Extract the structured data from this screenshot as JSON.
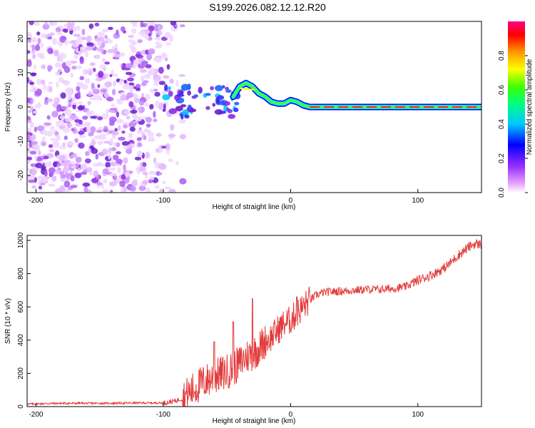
{
  "title": "S199.2026.082.12.12.R20",
  "colors": {
    "series": "#e33b3b",
    "axis": "#000000",
    "background": "#ffffff"
  },
  "chart_data": [
    {
      "type": "heatmap",
      "title": "",
      "xlabel": "Height of straight line (km)",
      "ylabel": "Frequency (Hz)",
      "xlim": [
        -207,
        150
      ],
      "ylim": [
        -25,
        25
      ],
      "xticks": [
        -200,
        -100,
        0,
        100
      ],
      "yticks": [
        -20,
        -10,
        0,
        10,
        20
      ],
      "colorbar": {
        "label": "Normalized spectral amplitude",
        "range": [
          0,
          1
        ],
        "ticks": [
          "0.0",
          "0.2",
          "0.4",
          "0.6",
          "0.8"
        ],
        "tick_values": [
          0.0,
          0.2,
          0.4,
          0.6,
          0.8
        ],
        "colormap": [
          "#ffffff",
          "#e9a8ff",
          "#8a2be2",
          "#0000ff",
          "#00ffff",
          "#00ff00",
          "#ffff00",
          "#ff8800",
          "#ff0000",
          "#ff0080"
        ]
      },
      "ridge": {
        "description_points_km_hz": [
          [
            -100,
            4
          ],
          [
            -90,
            3
          ],
          [
            -80,
            4
          ],
          [
            -70,
            3
          ],
          [
            -60,
            2
          ],
          [
            -50,
            1
          ],
          [
            -45,
            3
          ],
          [
            -40,
            6
          ],
          [
            -35,
            7
          ],
          [
            -30,
            6
          ],
          [
            -25,
            4
          ],
          [
            -20,
            3
          ],
          [
            -15,
            1.5
          ],
          [
            -10,
            1
          ],
          [
            -5,
            1
          ],
          [
            0,
            2
          ],
          [
            5,
            1.5
          ],
          [
            10,
            0.5
          ],
          [
            15,
            0
          ],
          [
            150,
            0
          ]
        ]
      }
    },
    {
      "type": "line",
      "title": "",
      "xlabel": "Height of straight line (km)",
      "ylabel": "SNR (10 * v/v)",
      "xlim": [
        -207,
        150
      ],
      "ylim": [
        0,
        1030
      ],
      "xticks": [
        -200,
        -100,
        0,
        100
      ],
      "yticks": [
        0,
        200,
        400,
        600,
        800,
        1000
      ],
      "series": [
        {
          "name": "SNR",
          "x": [
            -207,
            -195,
            -180,
            -160,
            -140,
            -120,
            -100,
            -95,
            -90,
            -85,
            -80,
            -75,
            -70,
            -65,
            -60,
            -55,
            -50,
            -45,
            -40,
            -35,
            -30,
            -25,
            -20,
            -15,
            -10,
            -5,
            0,
            3,
            6,
            10,
            15,
            20,
            25,
            30,
            40,
            50,
            60,
            70,
            80,
            90,
            95,
            100,
            110,
            120,
            125,
            130,
            135,
            140,
            145,
            150
          ],
          "values": [
            15,
            18,
            20,
            20,
            20,
            22,
            22,
            28,
            35,
            50,
            80,
            110,
            140,
            160,
            180,
            195,
            210,
            230,
            260,
            300,
            320,
            350,
            390,
            420,
            460,
            500,
            520,
            545,
            570,
            600,
            640,
            670,
            685,
            690,
            695,
            700,
            705,
            705,
            710,
            720,
            740,
            760,
            790,
            830,
            860,
            900,
            930,
            960,
            980,
            975
          ]
        }
      ],
      "spikes": [
        {
          "x": -30,
          "value": 650
        },
        {
          "x": 5,
          "value": 660
        },
        {
          "x": -45,
          "value": 510
        },
        {
          "x": -60,
          "value": 390
        }
      ]
    }
  ]
}
